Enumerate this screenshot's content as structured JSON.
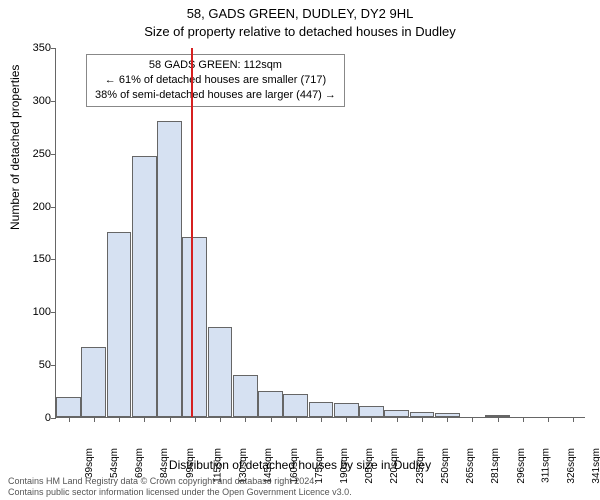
{
  "chart": {
    "type": "histogram",
    "title_main": "58, GADS GREEN, DUDLEY, DY2 9HL",
    "title_sub": "Size of property relative to detached houses in Dudley",
    "ylabel": "Number of detached properties",
    "xlabel": "Distribution of detached houses by size in Dudley",
    "background_color": "#ffffff",
    "bar_fill": "#d6e1f2",
    "bar_border": "#666666",
    "ref_line_color": "#d62020",
    "ref_line_x_value": 112,
    "annotation": {
      "line1": "58 GADS GREEN: 112sqm",
      "line2": "← 61% of detached houses are smaller (717)",
      "line3": "38% of semi-detached houses are larger (447) →"
    },
    "ylim": [
      0,
      350
    ],
    "ytick_step": 50,
    "yticks": [
      0,
      50,
      100,
      150,
      200,
      250,
      300,
      350
    ],
    "x_categories": [
      "39sqm",
      "54sqm",
      "69sqm",
      "84sqm",
      "99sqm",
      "115sqm",
      "130sqm",
      "145sqm",
      "160sqm",
      "175sqm",
      "190sqm",
      "205sqm",
      "220sqm",
      "235sqm",
      "250sqm",
      "265sqm",
      "281sqm",
      "296sqm",
      "311sqm",
      "326sqm",
      "341sqm"
    ],
    "values": [
      19,
      66,
      175,
      247,
      280,
      170,
      85,
      40,
      25,
      22,
      14,
      13,
      10,
      7,
      5,
      4,
      0,
      2,
      0,
      0,
      0
    ],
    "title_fontsize": 13,
    "label_fontsize": 12,
    "tick_fontsize": 11
  },
  "license": {
    "line1": "Contains HM Land Registry data © Crown copyright and database right 2024.",
    "line2": "Contains public sector information licensed under the Open Government Licence v3.0."
  }
}
